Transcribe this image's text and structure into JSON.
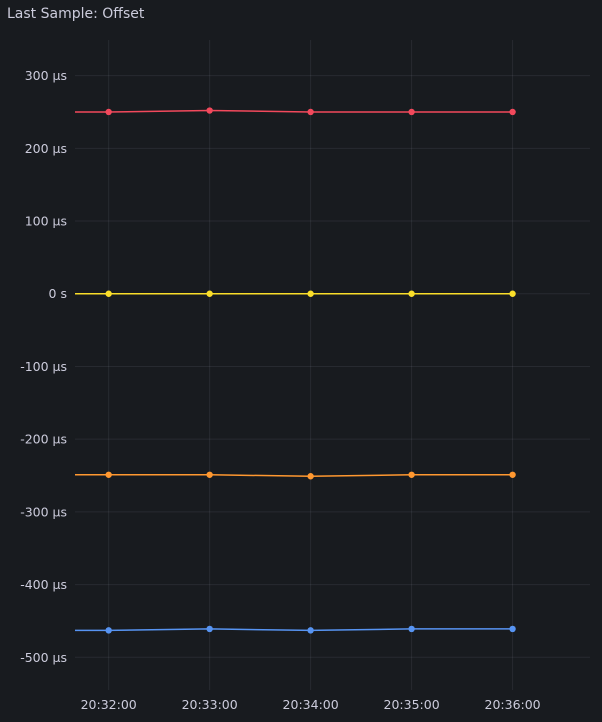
{
  "panel": {
    "title": "Last Sample: Offset"
  },
  "chart_data": {
    "type": "line",
    "title": "Last Sample: Offset",
    "xlabel": "",
    "ylabel": "",
    "x": [
      "20:32:00",
      "20:33:00",
      "20:34:00",
      "20:35:00",
      "20:36:00"
    ],
    "xlim": [
      "20:31:40",
      "20:36:46"
    ],
    "ylim": [
      -545,
      349
    ],
    "y_unit": "µs",
    "grid": true,
    "legend": "none",
    "yticks": [
      {
        "value": 300,
        "label": "300 µs"
      },
      {
        "value": 200,
        "label": "200 µs"
      },
      {
        "value": 100,
        "label": "100 µs"
      },
      {
        "value": 0,
        "label": "0 s"
      },
      {
        "value": -100,
        "label": "-100 µs"
      },
      {
        "value": -200,
        "label": "-200 µs"
      },
      {
        "value": -300,
        "label": "-300 µs"
      },
      {
        "value": -400,
        "label": "-400 µs"
      },
      {
        "value": -500,
        "label": "-500 µs"
      }
    ],
    "xticks": [
      "20:32:00",
      "20:33:00",
      "20:34:00",
      "20:35:00",
      "20:36:00"
    ],
    "series": [
      {
        "name": "red",
        "color": "#F2495C",
        "values": [
          250,
          252,
          250,
          250,
          250
        ]
      },
      {
        "name": "yellow",
        "color": "#FADE2A",
        "values": [
          0,
          0,
          0,
          0,
          0
        ]
      },
      {
        "name": "orange",
        "color": "#FF9830",
        "values": [
          -249,
          -249,
          -251,
          -249,
          -249
        ]
      },
      {
        "name": "blue",
        "color": "#5794F2",
        "values": [
          -463,
          -461,
          -463,
          -461,
          -461
        ]
      }
    ]
  }
}
